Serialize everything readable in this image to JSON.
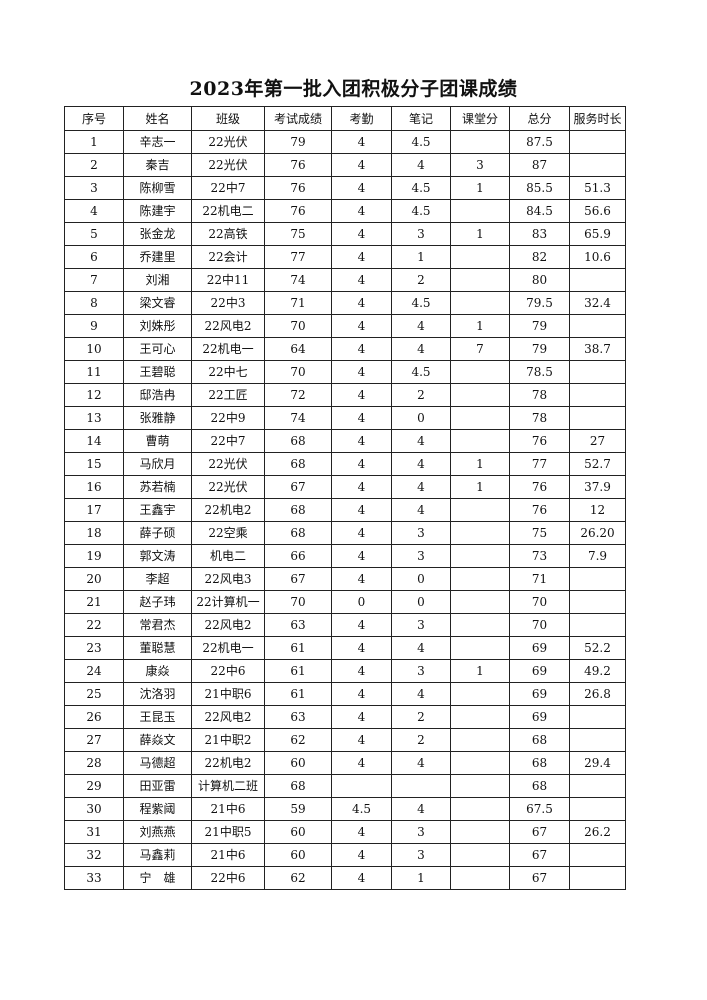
{
  "title": "2023年第一批入团积极分子团课成绩",
  "columns": [
    "序号",
    "姓名",
    "班级",
    "考试成绩",
    "考勤",
    "笔记",
    "课堂分",
    "总分",
    "服务时长"
  ],
  "rows": [
    [
      "1",
      "辛志一",
      "22光伏",
      "79",
      "4",
      "4.5",
      "",
      "87.5",
      ""
    ],
    [
      "2",
      "秦吉",
      "22光伏",
      "76",
      "4",
      "4",
      "3",
      "87",
      ""
    ],
    [
      "3",
      "陈柳雪",
      "22中7",
      "76",
      "4",
      "4.5",
      "1",
      "85.5",
      "51.3"
    ],
    [
      "4",
      "陈建宇",
      "22机电二",
      "76",
      "4",
      "4.5",
      "",
      "84.5",
      "56.6"
    ],
    [
      "5",
      "张金龙",
      "22高铁",
      "75",
      "4",
      "3",
      "1",
      "83",
      "65.9"
    ],
    [
      "6",
      "乔建里",
      "22会计",
      "77",
      "4",
      "1",
      "",
      "82",
      "10.6"
    ],
    [
      "7",
      "刘湘",
      "22中11",
      "74",
      "4",
      "2",
      "",
      "80",
      ""
    ],
    [
      "8",
      "梁文睿",
      "22中3",
      "71",
      "4",
      "4.5",
      "",
      "79.5",
      "32.4"
    ],
    [
      "9",
      "刘姝彤",
      "22风电2",
      "70",
      "4",
      "4",
      "1",
      "79",
      ""
    ],
    [
      "10",
      "王可心",
      "22机电一",
      "64",
      "4",
      "4",
      "7",
      "79",
      "38.7"
    ],
    [
      "11",
      "王碧聪",
      "22中七",
      "70",
      "4",
      "4.5",
      "",
      "78.5",
      ""
    ],
    [
      "12",
      "邸浩冉",
      "22工匠",
      "72",
      "4",
      "2",
      "",
      "78",
      ""
    ],
    [
      "13",
      "张雅静",
      "22中9",
      "74",
      "4",
      "0",
      "",
      "78",
      ""
    ],
    [
      "14",
      "曹萌",
      "22中7",
      "68",
      "4",
      "4",
      "",
      "76",
      "27"
    ],
    [
      "15",
      "马欣月",
      "22光伏",
      "68",
      "4",
      "4",
      "1",
      "77",
      "52.7"
    ],
    [
      "16",
      "苏若楠",
      "22光伏",
      "67",
      "4",
      "4",
      "1",
      "76",
      "37.9"
    ],
    [
      "17",
      "王鑫宇",
      "22机电2",
      "68",
      "4",
      "4",
      "",
      "76",
      "12"
    ],
    [
      "18",
      "薛子硕",
      "22空乘",
      "68",
      "4",
      "3",
      "",
      "75",
      "26.20"
    ],
    [
      "19",
      "郭文涛",
      "机电二",
      "66",
      "4",
      "3",
      "",
      "73",
      "7.9"
    ],
    [
      "20",
      "李超",
      "22风电3",
      "67",
      "4",
      "0",
      "",
      "71",
      ""
    ],
    [
      "21",
      "赵子玮",
      "22计算机一",
      "70",
      "0",
      "0",
      "",
      "70",
      ""
    ],
    [
      "22",
      "常君杰",
      "22风电2",
      "63",
      "4",
      "3",
      "",
      "70",
      ""
    ],
    [
      "23",
      "董聪慧",
      "22机电一",
      "61",
      "4",
      "4",
      "",
      "69",
      "52.2"
    ],
    [
      "24",
      "康焱",
      "22中6",
      "61",
      "4",
      "3",
      "1",
      "69",
      "49.2"
    ],
    [
      "25",
      "沈洛羽",
      "21中职6",
      "61",
      "4",
      "4",
      "",
      "69",
      "26.8"
    ],
    [
      "26",
      "王昆玉",
      "22风电2",
      "63",
      "4",
      "2",
      "",
      "69",
      ""
    ],
    [
      "27",
      "薛焱文",
      "21中职2",
      "62",
      "4",
      "2",
      "",
      "68",
      ""
    ],
    [
      "28",
      "马德超",
      "22机电2",
      "60",
      "4",
      "4",
      "",
      "68",
      "29.4"
    ],
    [
      "29",
      "田亚雷",
      "计算机二班",
      "68",
      "",
      "",
      "",
      "68",
      ""
    ],
    [
      "30",
      "程紫阈",
      "21中6",
      "59",
      "4.5",
      "4",
      "",
      "67.5",
      ""
    ],
    [
      "31",
      "刘燕燕",
      "21中职5",
      "60",
      "4",
      "3",
      "",
      "67",
      "26.2"
    ],
    [
      "32",
      "马鑫莉",
      "21中6",
      "60",
      "4",
      "3",
      "",
      "67",
      ""
    ],
    [
      "33",
      "宁　雄",
      "22中6",
      "62",
      "4",
      "1",
      "",
      "67",
      ""
    ]
  ]
}
